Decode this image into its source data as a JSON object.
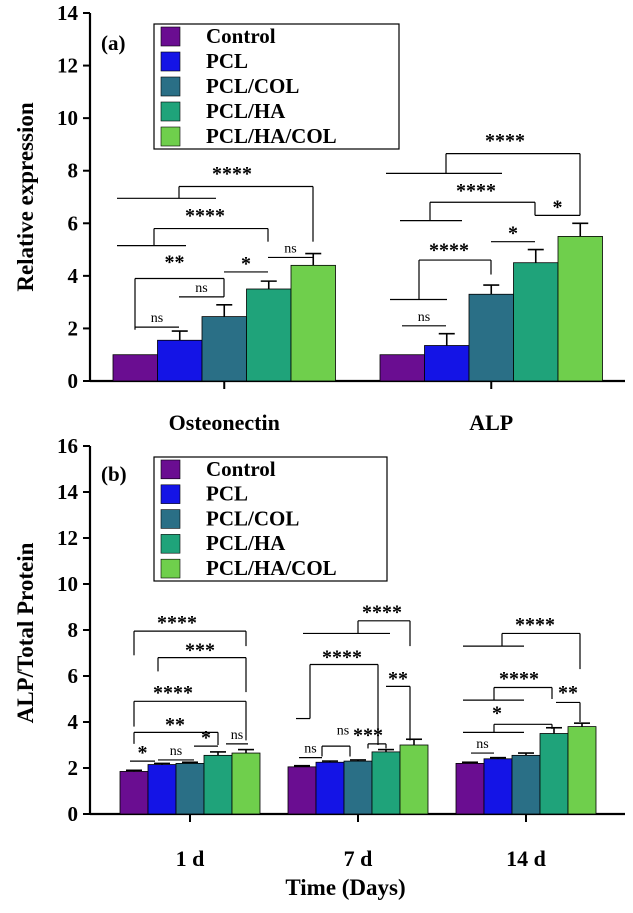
{
  "chart_data": [
    {
      "panel": "(a)",
      "type": "bar",
      "ylabel": "Relative expression",
      "xlabel": "",
      "ylim": [
        0,
        14
      ],
      "yticks": [
        "0",
        "2",
        "4",
        "6",
        "8",
        "10",
        "12",
        "14"
      ],
      "categories": [
        "Osteonectin",
        "ALP"
      ],
      "series": [
        {
          "name": "Control",
          "color": "#6a0d91",
          "values": [
            1.0,
            1.0
          ],
          "errors": [
            0.0,
            0.0
          ]
        },
        {
          "name": "PCL",
          "color": "#1414e6",
          "values": [
            1.55,
            1.35
          ],
          "errors": [
            0.35,
            0.45
          ]
        },
        {
          "name": "PCL/COL",
          "color": "#2a6f86",
          "values": [
            2.45,
            3.3
          ],
          "errors": [
            0.45,
            0.35
          ]
        },
        {
          "name": "PCL/HA",
          "color": "#1fa37a",
          "values": [
            3.5,
            4.5
          ],
          "errors": [
            0.3,
            0.5
          ]
        },
        {
          "name": "PCL/HA/COL",
          "color": "#6fcf4c",
          "values": [
            4.4,
            5.5
          ],
          "errors": [
            0.45,
            0.5
          ]
        }
      ],
      "significance": [
        {
          "label": "ns",
          "category": 0
        },
        {
          "label": "ns",
          "category": 0
        },
        {
          "label": "*",
          "category": 0
        },
        {
          "label": "ns",
          "category": 0
        },
        {
          "label": "**",
          "category": 0
        },
        {
          "label": "****",
          "category": 0
        },
        {
          "label": "****",
          "category": 0
        },
        {
          "label": "ns",
          "category": 1
        },
        {
          "label": "****",
          "category": 1
        },
        {
          "label": "*",
          "category": 1
        },
        {
          "label": "****",
          "category": 1
        },
        {
          "label": "*",
          "category": 1
        },
        {
          "label": "****",
          "category": 1
        }
      ]
    },
    {
      "panel": "(b)",
      "type": "bar",
      "ylabel": "ALP/Total Protein",
      "xlabel": "Time (Days)",
      "ylim": [
        0,
        16
      ],
      "yticks": [
        "0",
        "2",
        "4",
        "6",
        "8",
        "10",
        "12",
        "14",
        "16"
      ],
      "categories": [
        "1 d",
        "7 d",
        "14 d"
      ],
      "series": [
        {
          "name": "Control",
          "color": "#6a0d91",
          "values": [
            1.85,
            2.05,
            2.2
          ],
          "errors": [
            0.05,
            0.05,
            0.05
          ]
        },
        {
          "name": "PCL",
          "color": "#1414e6",
          "values": [
            2.15,
            2.25,
            2.4
          ],
          "errors": [
            0.05,
            0.05,
            0.05
          ]
        },
        {
          "name": "PCL/COL",
          "color": "#2a6f86",
          "values": [
            2.2,
            2.3,
            2.55
          ],
          "errors": [
            0.05,
            0.05,
            0.1
          ]
        },
        {
          "name": "PCL/HA",
          "color": "#1fa37a",
          "values": [
            2.55,
            2.7,
            3.5
          ],
          "errors": [
            0.15,
            0.1,
            0.25
          ]
        },
        {
          "name": "PCL/HA/COL",
          "color": "#6fcf4c",
          "values": [
            2.65,
            3.0,
            3.8
          ],
          "errors": [
            0.15,
            0.25,
            0.15
          ]
        }
      ],
      "significance": [
        {
          "label": "*",
          "category": 0
        },
        {
          "label": "ns",
          "category": 0
        },
        {
          "label": "*",
          "category": 0
        },
        {
          "label": "ns",
          "category": 0
        },
        {
          "label": "**",
          "category": 0
        },
        {
          "label": "****",
          "category": 0
        },
        {
          "label": "***",
          "category": 0
        },
        {
          "label": "****",
          "category": 0
        },
        {
          "label": "ns",
          "category": 1
        },
        {
          "label": "ns",
          "category": 1
        },
        {
          "label": "***",
          "category": 1
        },
        {
          "label": "**",
          "category": 1
        },
        {
          "label": "****",
          "category": 1
        },
        {
          "label": "****",
          "category": 1
        },
        {
          "label": "ns",
          "category": 2
        },
        {
          "label": "*",
          "category": 2
        },
        {
          "label": "**",
          "category": 2
        },
        {
          "label": "****",
          "category": 2
        },
        {
          "label": "****",
          "category": 2
        }
      ]
    }
  ]
}
